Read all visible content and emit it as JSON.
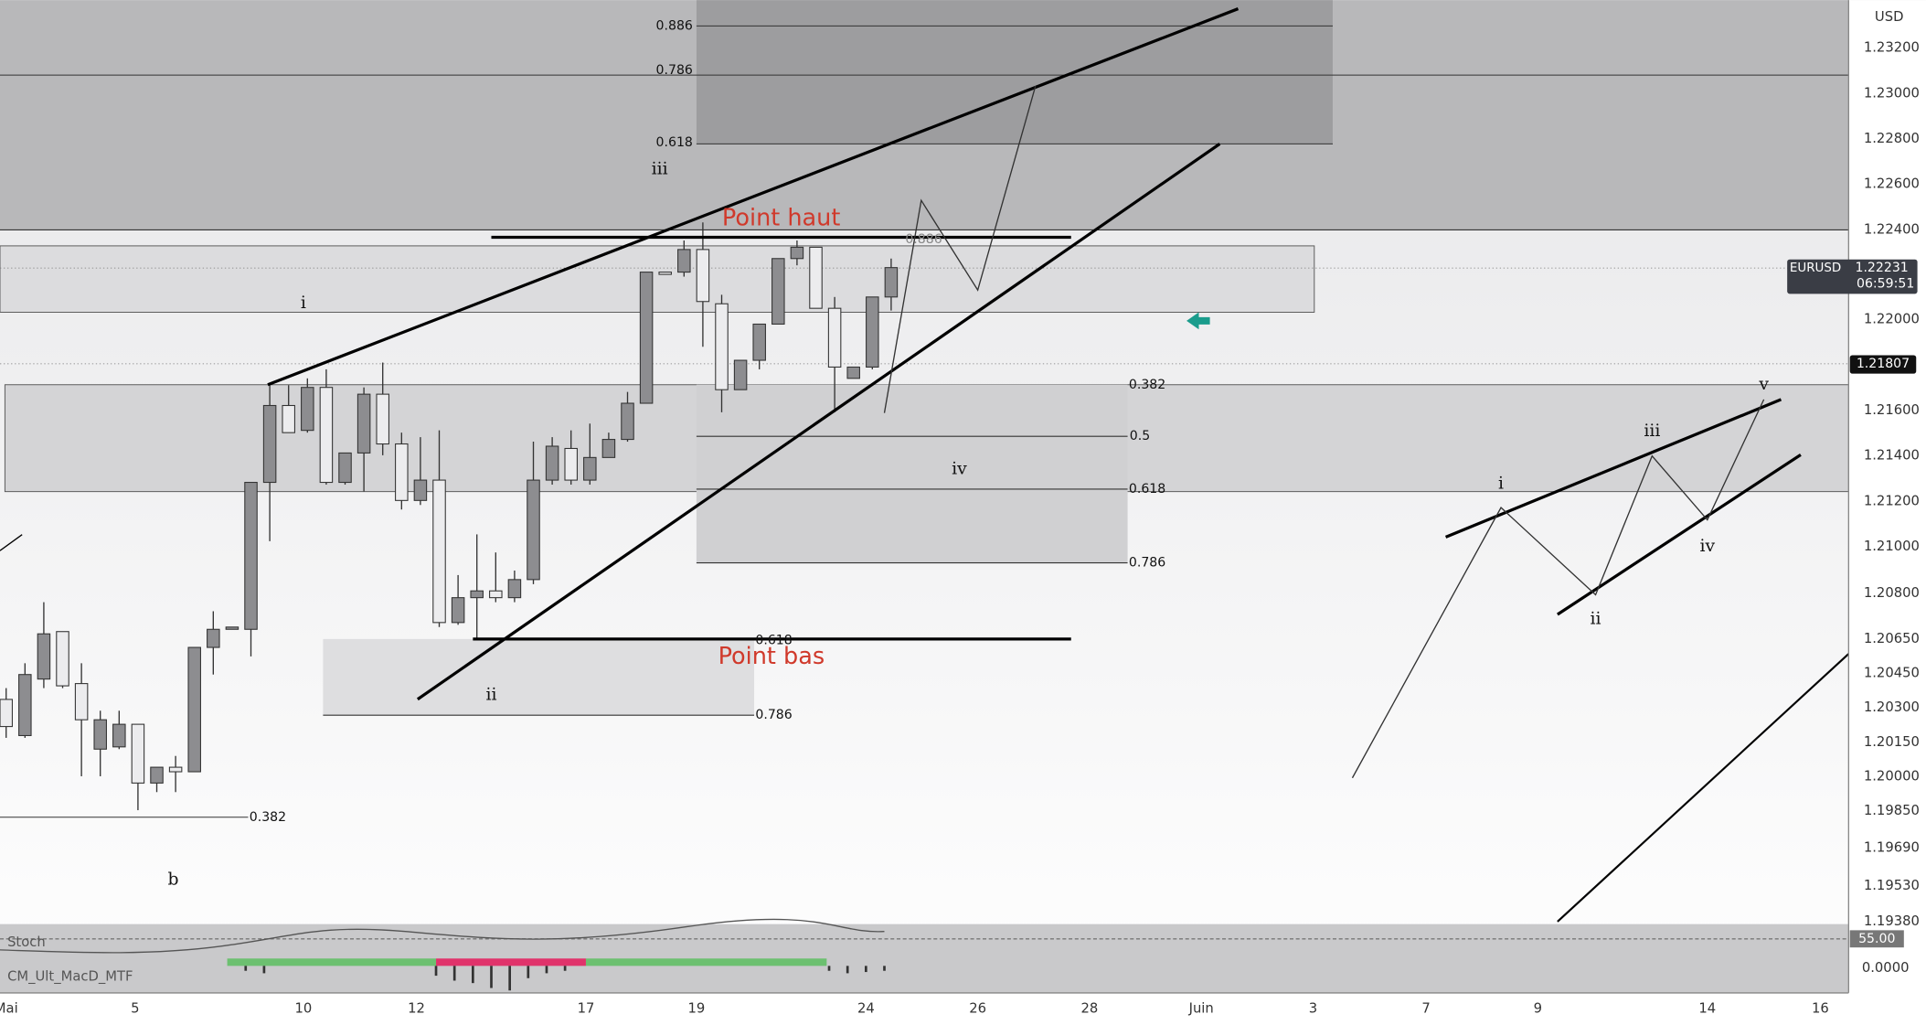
{
  "symbol": {
    "name": "EURUSD",
    "price": "1.22231",
    "countdown": "06:59:51",
    "currency": "USD",
    "marker": "1.21807"
  },
  "price_axis": {
    "labels": [
      "1.23200",
      "1.23000",
      "1.22800",
      "1.22600",
      "1.22400",
      "1.22000",
      "1.21600",
      "1.21400",
      "1.21200",
      "1.21000",
      "1.20800",
      "1.20650",
      "1.20450",
      "1.20300",
      "1.20150",
      "1.20000",
      "1.19850",
      "1.19690",
      "1.19530",
      "1.19380"
    ]
  },
  "time_axis": {
    "labels": [
      "Mai",
      "5",
      "10",
      "12",
      "17",
      "19",
      "24",
      "26",
      "28",
      "Juin",
      "3",
      "7",
      "9",
      "14",
      "16"
    ]
  },
  "annotations": {
    "high": "Point haut",
    "low": "Point bas"
  },
  "fib_labels": [
    "0.886",
    "0.786",
    "0.618",
    "0.382",
    "0.5",
    "0.618",
    "0.786",
    "0.618",
    "0.786",
    "0.382",
    "0.886"
  ],
  "wave_labels": [
    "iii",
    "i",
    "iv",
    "ii",
    "b",
    "i",
    "iii",
    "v",
    "iv",
    "ii"
  ],
  "indicators": {
    "stoch": "Stoch",
    "stoch_value": "55.00",
    "macd": "CM_Ult_MacD_MTF",
    "macd_value": "0.0000"
  },
  "candles": [
    [
      1.2032,
      1.2037,
      1.2015,
      1.202
    ],
    [
      1.2016,
      1.2048,
      1.2015,
      1.2043
    ],
    [
      1.2041,
      1.2075,
      1.2037,
      1.2061
    ],
    [
      1.2062,
      1.2062,
      1.2037,
      1.2038
    ],
    [
      1.2039,
      1.2048,
      1.1998,
      1.2023
    ],
    [
      1.201,
      1.2027,
      1.1998,
      1.2023
    ],
    [
      1.2011,
      1.2027,
      1.201,
      1.2021
    ],
    [
      1.2021,
      1.2021,
      1.1983,
      1.1995
    ],
    [
      1.1995,
      1.2002,
      1.1991,
      1.2002
    ],
    [
      1.2002,
      1.2007,
      1.1991,
      1.2
    ],
    [
      1.2,
      1.2055,
      1.2,
      1.2055
    ],
    [
      1.2055,
      1.2071,
      1.2043,
      1.2063
    ],
    [
      1.2063,
      1.2064,
      1.2063,
      1.2064
    ],
    [
      1.2063,
      1.2128,
      1.2051,
      1.2128
    ],
    [
      1.2128,
      1.2171,
      1.2102,
      1.2162
    ],
    [
      1.2162,
      1.2171,
      1.215,
      1.215
    ],
    [
      1.2151,
      1.2174,
      1.215,
      1.217
    ],
    [
      1.217,
      1.2178,
      1.2127,
      1.2128
    ],
    [
      1.2128,
      1.2141,
      1.2127,
      1.2141
    ],
    [
      1.2141,
      1.217,
      1.2124,
      1.2167
    ],
    [
      1.2167,
      1.2181,
      1.214,
      1.2145
    ],
    [
      1.2145,
      1.215,
      1.2116,
      1.212
    ],
    [
      1.212,
      1.2148,
      1.2118,
      1.2129
    ],
    [
      1.2129,
      1.2151,
      1.2064,
      1.2066
    ],
    [
      1.2066,
      1.2087,
      1.2065,
      1.2077
    ],
    [
      1.2077,
      1.2105,
      1.2059,
      1.208
    ],
    [
      1.208,
      1.2097,
      1.2075,
      1.2077
    ],
    [
      1.2077,
      1.2089,
      1.2075,
      1.2085
    ],
    [
      1.2085,
      1.2146,
      1.2083,
      1.2129
    ],
    [
      1.2129,
      1.2148,
      1.2127,
      1.2144
    ],
    [
      1.2143,
      1.2151,
      1.2127,
      1.2129
    ],
    [
      1.2129,
      1.2154,
      1.2127,
      1.2139
    ],
    [
      1.2139,
      1.215,
      1.2139,
      1.2147
    ],
    [
      1.2147,
      1.2168,
      1.2146,
      1.2163
    ],
    [
      1.2163,
      1.2221,
      1.2163,
      1.2221
    ],
    [
      1.2221,
      1.2221,
      1.222,
      1.222
    ],
    [
      1.2221,
      1.2235,
      1.2219,
      1.2231
    ],
    [
      1.2231,
      1.2243,
      1.2188,
      1.2208
    ],
    [
      1.2207,
      1.2211,
      1.2159,
      1.2169
    ],
    [
      1.2169,
      1.2182,
      1.2169,
      1.2182
    ],
    [
      1.2182,
      1.2198,
      1.2178,
      1.2198
    ],
    [
      1.2198,
      1.2227,
      1.2198,
      1.2227
    ],
    [
      1.2227,
      1.2235,
      1.2224,
      1.2232
    ],
    [
      1.2232,
      1.2232,
      1.2205,
      1.2205
    ],
    [
      1.2205,
      1.221,
      1.2159,
      1.2179
    ],
    [
      1.2174,
      1.2179,
      1.2174,
      1.2179
    ],
    [
      1.2179,
      1.221,
      1.2178,
      1.221
    ],
    [
      1.221,
      1.2227,
      1.2204,
      1.2223
    ]
  ]
}
